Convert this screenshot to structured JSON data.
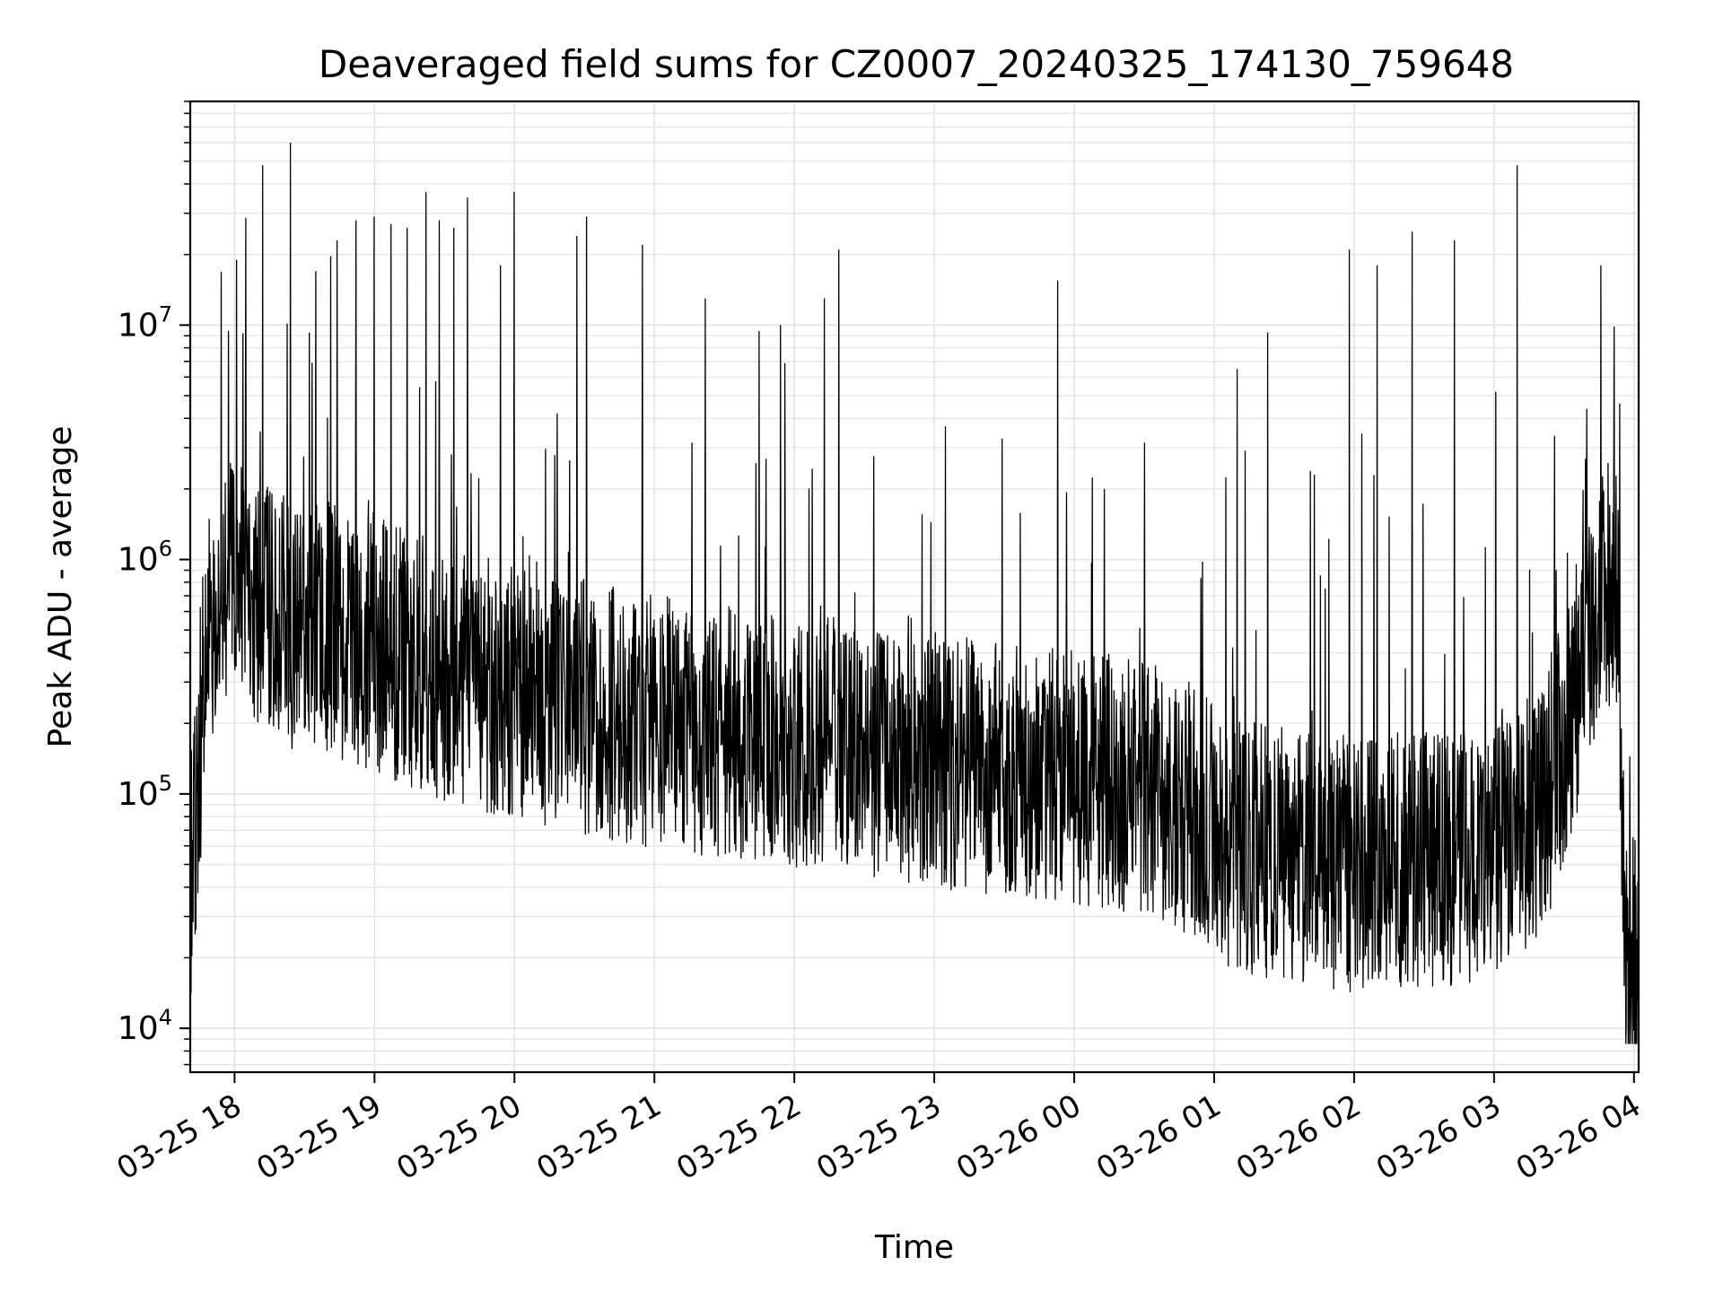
{
  "chart_data": {
    "type": "line",
    "title": "Deaveraged field sums for CZ0007_20240325_174130_759648",
    "xlabel": "Time",
    "ylabel": "Peak ADU - average",
    "yscale": "log",
    "ylim": [
      6500,
      90000000
    ],
    "xlim": [
      "2024-03-25 17:41",
      "2024-03-26 04:02"
    ],
    "grid": true,
    "line_color": "#000000",
    "x_ticks": [
      {
        "t": "2024-03-25 18:00",
        "label": "03-25 18"
      },
      {
        "t": "2024-03-25 19:00",
        "label": "03-25 19"
      },
      {
        "t": "2024-03-25 20:00",
        "label": "03-25 20"
      },
      {
        "t": "2024-03-25 21:00",
        "label": "03-25 21"
      },
      {
        "t": "2024-03-25 22:00",
        "label": "03-25 22"
      },
      {
        "t": "2024-03-25 23:00",
        "label": "03-25 23"
      },
      {
        "t": "2024-03-26 00:00",
        "label": "03-26 00"
      },
      {
        "t": "2024-03-26 01:00",
        "label": "03-26 01"
      },
      {
        "t": "2024-03-26 02:00",
        "label": "03-26 02"
      },
      {
        "t": "2024-03-26 03:00",
        "label": "03-26 03"
      },
      {
        "t": "2024-03-26 04:00",
        "label": "03-26 04"
      }
    ],
    "y_ticks": [
      {
        "value": 10000,
        "base": "10",
        "exp": "4"
      },
      {
        "value": 100000,
        "base": "10",
        "exp": "5"
      },
      {
        "value": 1000000,
        "base": "10",
        "exp": "6"
      },
      {
        "value": 10000000,
        "base": "10",
        "exp": "7"
      }
    ],
    "baseline": [
      {
        "t": "2024-03-25 17:41",
        "y": 40000
      },
      {
        "t": "2024-03-25 17:47",
        "y": 300000
      },
      {
        "t": "2024-03-25 17:53",
        "y": 900000
      },
      {
        "t": "2024-03-25 18:10",
        "y": 600000
      },
      {
        "t": "2024-03-25 18:40",
        "y": 500000
      },
      {
        "t": "2024-03-25 19:10",
        "y": 400000
      },
      {
        "t": "2024-03-25 19:40",
        "y": 300000
      },
      {
        "t": "2024-03-25 20:20",
        "y": 250000
      },
      {
        "t": "2024-03-25 21:00",
        "y": 200000
      },
      {
        "t": "2024-03-25 22:00",
        "y": 170000
      },
      {
        "t": "2024-03-25 23:00",
        "y": 140000
      },
      {
        "t": "2024-03-26 00:00",
        "y": 120000
      },
      {
        "t": "2024-03-26 00:40",
        "y": 100000
      },
      {
        "t": "2024-03-26 01:10",
        "y": 60000
      },
      {
        "t": "2024-03-26 02:00",
        "y": 50000
      },
      {
        "t": "2024-03-26 02:50",
        "y": 55000
      },
      {
        "t": "2024-03-26 03:20",
        "y": 80000
      },
      {
        "t": "2024-03-26 03:36",
        "y": 300000
      },
      {
        "t": "2024-03-26 03:46",
        "y": 800000
      },
      {
        "t": "2024-03-26 03:53",
        "y": 700000
      },
      {
        "t": "2024-03-26 03:56",
        "y": 20000
      },
      {
        "t": "2024-03-26 04:02",
        "y": 20000
      }
    ],
    "spikes": [
      {
        "t": "2024-03-25 18:12",
        "y": 48000000
      },
      {
        "t": "2024-03-25 18:24",
        "y": 60000000
      },
      {
        "t": "2024-03-25 18:01",
        "y": 19000000
      },
      {
        "t": "2024-03-25 18:35",
        "y": 17000000
      },
      {
        "t": "2024-03-25 18:44",
        "y": 23000000
      },
      {
        "t": "2024-03-25 18:52",
        "y": 28000000
      },
      {
        "t": "2024-03-25 19:00",
        "y": 29000000
      },
      {
        "t": "2024-03-25 19:07",
        "y": 27000000
      },
      {
        "t": "2024-03-25 19:14",
        "y": 26000000
      },
      {
        "t": "2024-03-25 19:22",
        "y": 37000000
      },
      {
        "t": "2024-03-25 19:28",
        "y": 28000000
      },
      {
        "t": "2024-03-25 19:34",
        "y": 26000000
      },
      {
        "t": "2024-03-25 19:40",
        "y": 35000000
      },
      {
        "t": "2024-03-25 19:54",
        "y": 18000000
      },
      {
        "t": "2024-03-25 20:00",
        "y": 37000000
      },
      {
        "t": "2024-03-25 20:27",
        "y": 24000000
      },
      {
        "t": "2024-03-25 20:31",
        "y": 29000000
      },
      {
        "t": "2024-03-25 20:55",
        "y": 22000000
      },
      {
        "t": "2024-03-25 21:22",
        "y": 13000000
      },
      {
        "t": "2024-03-25 21:54",
        "y": 10000000
      },
      {
        "t": "2024-03-25 22:13",
        "y": 13000000
      },
      {
        "t": "2024-03-25 22:19",
        "y": 21000000
      },
      {
        "t": "2024-03-25 23:05",
        "y": 3700000
      },
      {
        "t": "2024-03-25 23:53",
        "y": 15500000
      },
      {
        "t": "2024-03-26 00:13",
        "y": 2000000
      },
      {
        "t": "2024-03-26 01:10",
        "y": 6500000
      },
      {
        "t": "2024-03-26 01:23",
        "y": 9300000
      },
      {
        "t": "2024-03-26 01:43",
        "y": 2300000
      },
      {
        "t": "2024-03-26 01:58",
        "y": 21000000
      },
      {
        "t": "2024-03-26 02:10",
        "y": 18000000
      },
      {
        "t": "2024-03-26 02:25",
        "y": 25000000
      },
      {
        "t": "2024-03-26 02:43",
        "y": 23000000
      },
      {
        "t": "2024-03-26 03:10",
        "y": 48000000
      },
      {
        "t": "2024-03-26 03:46",
        "y": 18000000
      }
    ]
  }
}
